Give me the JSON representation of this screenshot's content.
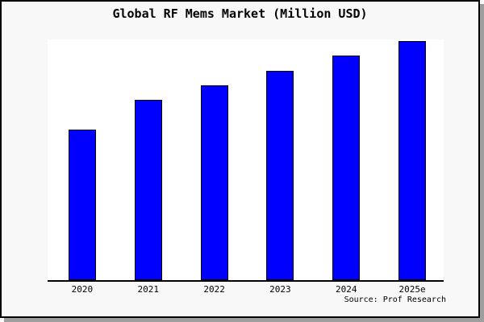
{
  "page": {
    "background_color": "#f8f8f8",
    "frame_border_color": "#000000",
    "drop_shadow_color": "#9e9e9e"
  },
  "chart_data": {
    "type": "bar",
    "title": "Global RF Mems Market (Million USD)",
    "categories": [
      "2020",
      "2021",
      "2022",
      "2023",
      "2024",
      "2025e"
    ],
    "values": [
      62.9,
      75.3,
      81.6,
      87.6,
      93.9,
      100
    ],
    "values_note": "No y-axis or data labels are shown in the image; values are relative bar heights indexed to 2025e = 100.",
    "ylim": [
      0,
      100.7
    ],
    "xlabel": "",
    "ylabel": "",
    "grid": false,
    "legend": "none",
    "bar_color": "#0000ff",
    "bar_border_color": "#000000",
    "plot_background": "#ffffff",
    "source": "Source: Prof Research"
  }
}
